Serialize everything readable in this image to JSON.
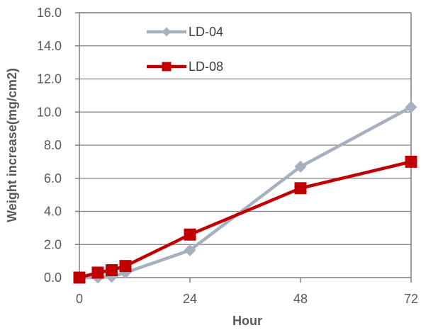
{
  "chart_data": {
    "type": "line",
    "xlabel": "Hour",
    "ylabel": "Weight  increase(mg/cm2)",
    "xlim": [
      0,
      72
    ],
    "ylim": [
      0,
      16
    ],
    "x_ticks": [
      "0",
      "24",
      "48",
      "72"
    ],
    "y_ticks": [
      "0.0",
      "2.0",
      "4.0",
      "6.0",
      "8.0",
      "10.0",
      "12.0",
      "14.0",
      "16.0"
    ],
    "grid": true,
    "legend_position": "top-left",
    "series": [
      {
        "name": "LD-04",
        "color": "#a6b0bf",
        "marker": "diamond",
        "x": [
          0,
          4,
          7,
          10,
          24,
          48,
          72
        ],
        "y": [
          0.0,
          0.0,
          0.05,
          0.3,
          1.65,
          6.7,
          10.3
        ]
      },
      {
        "name": "LD-08",
        "color": "#c00000",
        "marker": "square",
        "x": [
          0,
          4,
          7,
          10,
          24,
          48,
          72
        ],
        "y": [
          0.0,
          0.3,
          0.45,
          0.7,
          2.6,
          5.4,
          7.0
        ]
      }
    ]
  }
}
